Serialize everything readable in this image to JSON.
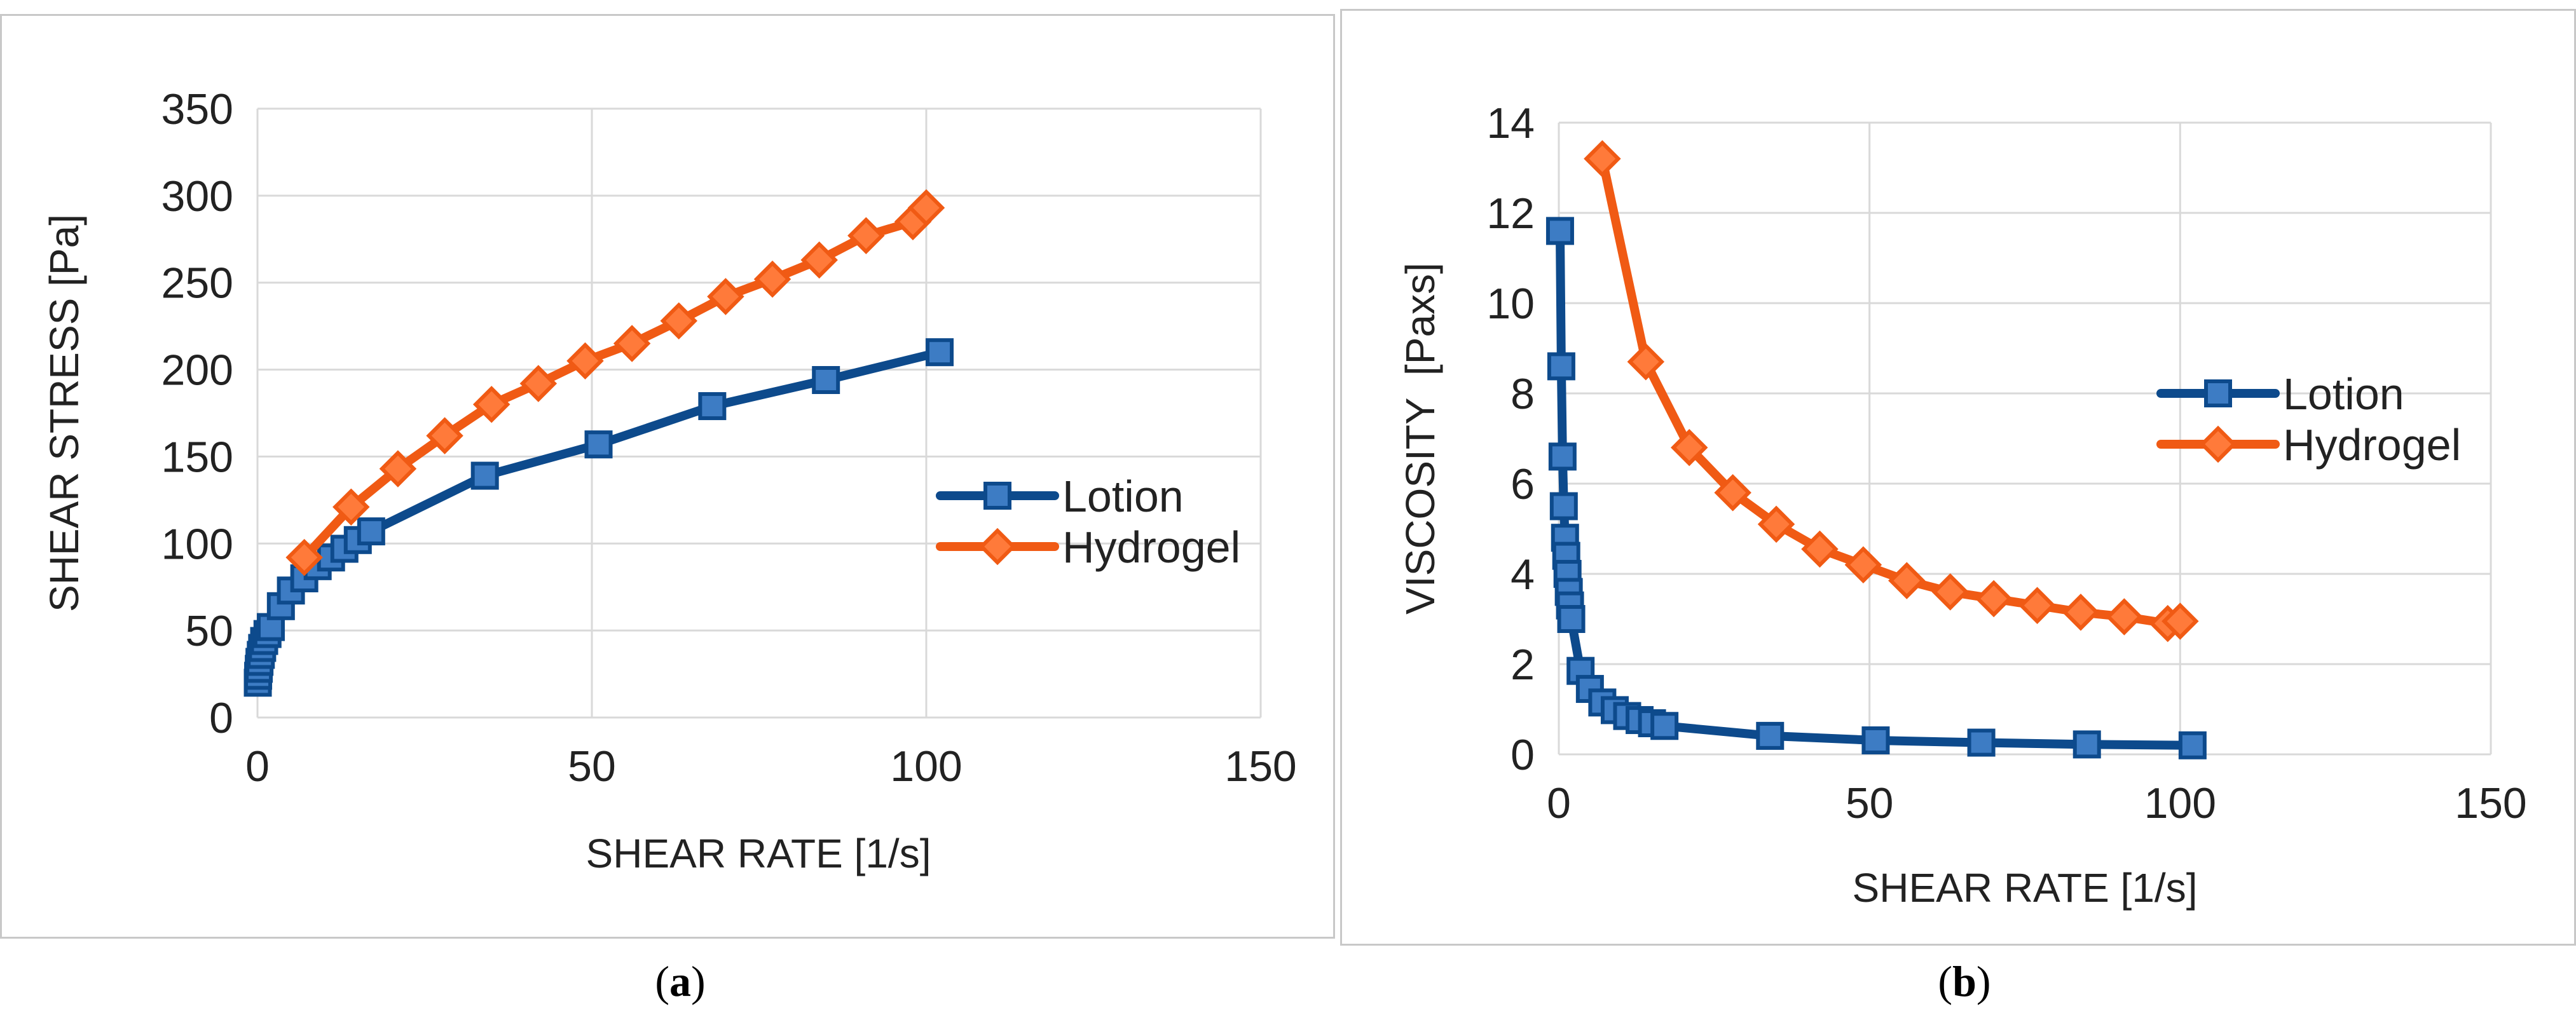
{
  "chart_data": [
    {
      "type": "line",
      "panel_label": "a",
      "xlabel": "SHEAR RATE [1/s]",
      "ylabel": "SHEAR STRESS [Pa]",
      "xlim": [
        0,
        150
      ],
      "ylim": [
        0,
        350
      ],
      "xticks": [
        0,
        50,
        100,
        150
      ],
      "yticks": [
        0,
        50,
        100,
        150,
        200,
        250,
        300,
        350
      ],
      "grid": true,
      "legend_position": "right",
      "series": [
        {
          "name": "Lotion",
          "color": "#0d4a8c",
          "marker": "square",
          "x": [
            0.05,
            0.1,
            0.2,
            0.3,
            0.5,
            0.7,
            1.0,
            1.5,
            2.0,
            3.5,
            5.0,
            7.0,
            9.0,
            11.0,
            13.0,
            15.0,
            17.0,
            34.0,
            51.0,
            68.0,
            85.0,
            102.0
          ],
          "y": [
            20,
            24,
            28,
            32,
            36,
            40,
            44,
            48,
            52,
            64,
            73,
            80,
            87,
            92,
            97,
            102,
            107,
            139,
            157,
            179,
            194,
            210
          ]
        },
        {
          "name": "Hydrogel",
          "color": "#f05a14",
          "marker": "diamond",
          "x": [
            7,
            14,
            21,
            28,
            35,
            42,
            49,
            56,
            63,
            70,
            77,
            84,
            91,
            98,
            100
          ],
          "y": [
            92,
            121,
            143,
            162,
            180,
            192,
            205,
            215,
            228,
            242,
            252,
            263,
            277,
            285,
            293
          ]
        }
      ]
    },
    {
      "type": "line",
      "panel_label": "b",
      "xlabel": "SHEAR RATE [1/s]",
      "ylabel": "VISCOSITY  [Paxs]",
      "xlim": [
        0,
        150
      ],
      "ylim": [
        0,
        14
      ],
      "xticks": [
        0,
        50,
        100,
        150
      ],
      "yticks": [
        0,
        2,
        4,
        6,
        8,
        10,
        12,
        14
      ],
      "grid": true,
      "legend_position": "right",
      "series": [
        {
          "name": "Lotion",
          "color": "#0d4a8c",
          "marker": "square",
          "x": [
            0.2,
            0.4,
            0.6,
            0.8,
            1.0,
            1.2,
            1.4,
            1.6,
            1.8,
            2.0,
            3.5,
            5.0,
            7.0,
            9.0,
            11.0,
            13.0,
            15.0,
            17.0,
            34.0,
            51.0,
            68.0,
            85.0,
            102.0
          ],
          "y": [
            11.6,
            8.6,
            6.6,
            5.5,
            4.8,
            4.4,
            4.0,
            3.6,
            3.3,
            3.0,
            1.85,
            1.45,
            1.15,
            0.98,
            0.85,
            0.76,
            0.69,
            0.63,
            0.41,
            0.31,
            0.26,
            0.22,
            0.2
          ]
        },
        {
          "name": "Hydrogel",
          "color": "#f05a14",
          "marker": "diamond",
          "x": [
            7,
            14,
            21,
            28,
            35,
            42,
            49,
            56,
            63,
            70,
            77,
            84,
            91,
            98,
            100
          ],
          "y": [
            13.2,
            8.7,
            6.8,
            5.8,
            5.1,
            4.55,
            4.2,
            3.85,
            3.6,
            3.45,
            3.3,
            3.15,
            3.05,
            2.9,
            2.95
          ]
        }
      ]
    }
  ],
  "captions": {
    "a": "a",
    "b": "b"
  }
}
